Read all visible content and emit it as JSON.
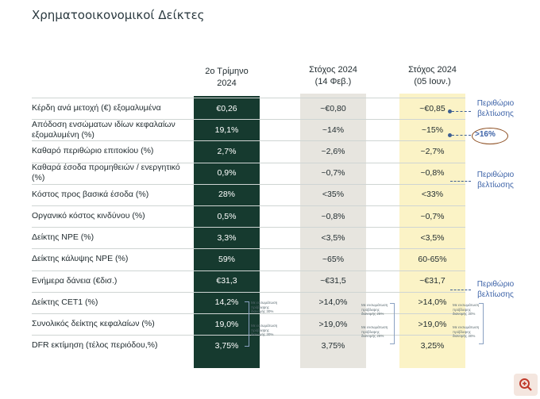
{
  "title": "Χρηματοοικονομικοί Δείκτες",
  "headers": {
    "col1": [
      "2ο Τρίμηνο",
      "2024"
    ],
    "col2": [
      "Στόχος 2024",
      "(14 Φεβ.)"
    ],
    "col3": [
      "Στόχος 2024",
      "(05 Ιουν.)"
    ]
  },
  "rows": [
    {
      "label": "Κέρδη ανά μετοχή (€) εξομαλυμένα",
      "q2": "€0,26",
      "feb": "~€0,80",
      "jun": "~€0,85"
    },
    {
      "label": "Απόδοση ενσώματων ιδίων κεφαλαίων εξομαλυμένη (%)",
      "q2": "19,1%",
      "feb": "~14%",
      "jun": "~15%"
    },
    {
      "label": "Καθαρό περιθώριο επιτοκίου (%)",
      "q2": "2,7%",
      "feb": "~2,6%",
      "jun": "~2,7%"
    },
    {
      "label": "Καθαρά έσοδα προμηθειών / ενεργητικό (%)",
      "q2": "0,9%",
      "feb": "~0,7%",
      "jun": "~0,8%"
    },
    {
      "label": "Κόστος προς βασικά έσοδα (%)",
      "q2": "28%",
      "feb": "<35%",
      "jun": "<33%"
    },
    {
      "label": "Οργανικό κόστος κινδύνου (%)",
      "q2": "0,5%",
      "feb": "~0,8%",
      "jun": "~0,7%"
    },
    {
      "label": "Δείκτης NPE (%)",
      "q2": "3,3%",
      "feb": "<3,5%",
      "jun": "<3,5%"
    },
    {
      "label": "Δείκτης κάλυψης NPE (%)",
      "q2": "59%",
      "feb": "~65%",
      "jun": "60-65%"
    },
    {
      "label": "Ενήμερα δάνεια (€δισ.)",
      "q2": "€31,3",
      "feb": "~€31,5",
      "jun": "~€31,7"
    },
    {
      "label": "Δείκτης CET1 (%)",
      "q2": "14,2%",
      "feb": ">14,0%",
      "jun": ">14,0%"
    },
    {
      "label": "Συνολικός δείκτης κεφαλαίων (%)",
      "q2": "19,0%",
      "feb": ">19,0%",
      "jun": ">19,0%"
    },
    {
      "label": "DFR εκτίμηση (τέλος περιόδου,%)",
      "q2": "3,75%",
      "feb": "3,75%",
      "jun": "3,25%"
    }
  ],
  "notes": {
    "q2": [
      "Με ενσωμάτωση",
      "πρόβλεψης",
      "διανομής 30%"
    ],
    "feb": [
      "Με ενσωμάτωση",
      "πρόβλεψης",
      "διανομής 25%"
    ],
    "jun": [
      "Με ενσωμάτωση",
      "πρόβλεψης",
      "διανομής 30%"
    ]
  },
  "annotations": {
    "improve1": [
      "Περιθώριο",
      "βελτίωσης"
    ],
    "roe_target": ">16%",
    "improve2": [
      "Περιθώριο",
      "βελτίωσης"
    ],
    "improve3": [
      "Περιθώριο",
      "βελτίωσης"
    ]
  }
}
